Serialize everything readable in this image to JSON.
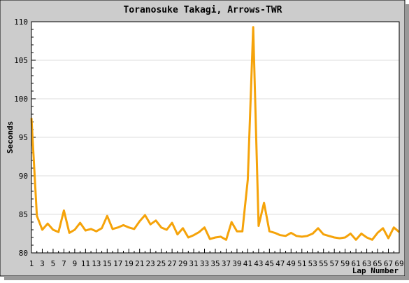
{
  "chart_data": {
    "type": "line",
    "title": "Toranosuke Takagi, Arrows-TWR",
    "xlabel": "Lap Number",
    "ylabel": "Seconds",
    "xlim": [
      1,
      69
    ],
    "ylim": [
      80,
      110
    ],
    "yticks": [
      80,
      85,
      90,
      95,
      100,
      105,
      110
    ],
    "xticks": [
      1,
      3,
      5,
      7,
      9,
      11,
      13,
      15,
      17,
      19,
      21,
      23,
      25,
      27,
      29,
      31,
      33,
      35,
      37,
      39,
      41,
      43,
      45,
      47,
      49,
      51,
      53,
      55,
      57,
      59,
      61,
      63,
      65,
      67,
      69
    ],
    "grid": "horizontal",
    "colors": {
      "line": "#f5a30a",
      "background": "#cccccc",
      "plot": "#ffffff",
      "grid": "#dddddd"
    },
    "series": [
      {
        "x": [
          1,
          2,
          3,
          4,
          5,
          6,
          7,
          8,
          9,
          10,
          11,
          12,
          13,
          14,
          15,
          16,
          17,
          18,
          19,
          20,
          21,
          22,
          23,
          24,
          25,
          26,
          27,
          28,
          29,
          30,
          31,
          32,
          33,
          34,
          35,
          36,
          37,
          38,
          39,
          40,
          41,
          42,
          43,
          44,
          45,
          46,
          47,
          48,
          49,
          50,
          51,
          52,
          53,
          54,
          55,
          56,
          57,
          58,
          59,
          60,
          61,
          62,
          63,
          64,
          65,
          66,
          67,
          68,
          69
        ],
        "y": [
          97.5,
          84.8,
          83.0,
          83.8,
          83.0,
          82.7,
          85.5,
          82.6,
          83.0,
          83.9,
          82.9,
          83.1,
          82.8,
          83.2,
          84.8,
          83.1,
          83.3,
          83.6,
          83.3,
          83.1,
          84.1,
          84.9,
          83.7,
          84.2,
          83.3,
          83.0,
          83.9,
          82.4,
          83.2,
          82.0,
          82.3,
          82.7,
          83.3,
          81.8,
          82.0,
          82.1,
          81.7,
          84.0,
          82.8,
          82.8,
          89.5,
          109.3,
          83.5,
          86.5,
          82.8,
          82.6,
          82.3,
          82.2,
          82.6,
          82.2,
          82.1,
          82.2,
          82.5,
          83.2,
          82.4,
          82.2,
          82.0,
          81.9,
          82.0,
          82.5,
          81.7,
          82.5,
          82.0,
          81.7,
          82.6,
          83.2,
          81.9,
          83.3,
          82.7
        ]
      }
    ]
  }
}
